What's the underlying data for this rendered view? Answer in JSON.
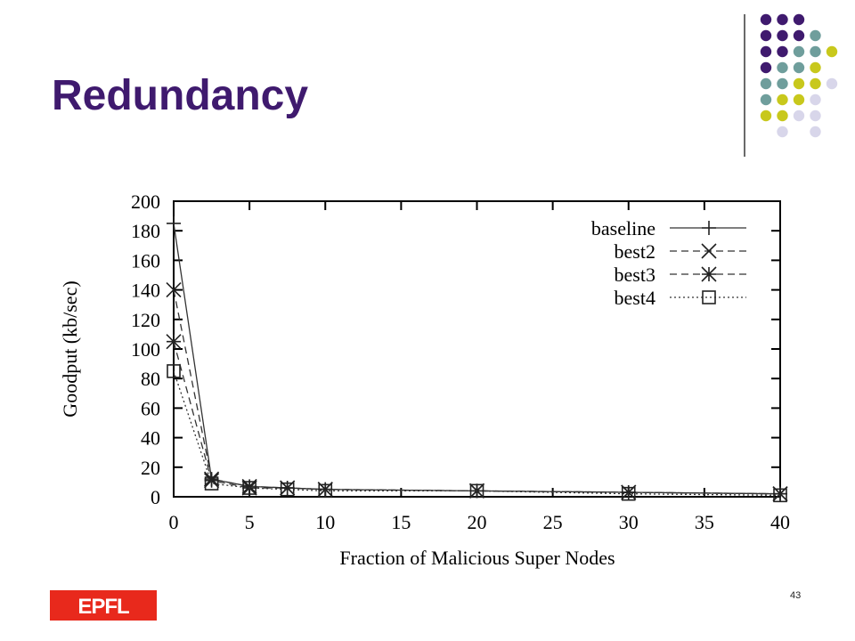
{
  "slide": {
    "title": "Redundancy",
    "page_number": "43",
    "logo_text": "EPFL"
  },
  "palette": {
    "title": "#3f1a6e",
    "dot_purple": "#3f1a6e",
    "dot_teal": "#6f9e9c",
    "dot_olive": "#c8c81c",
    "dot_lavender": "#d8d6ea",
    "logo_red": "#e8291c"
  },
  "dot_grid_colors": [
    [
      "purple",
      "purple",
      "purple",
      null,
      null
    ],
    [
      "purple",
      "purple",
      "purple",
      "teal",
      null
    ],
    [
      "purple",
      "purple",
      "teal",
      "teal",
      "olive"
    ],
    [
      "purple",
      "teal",
      "teal",
      "olive",
      null
    ],
    [
      "teal",
      "teal",
      "olive",
      "olive",
      "lavender"
    ],
    [
      "teal",
      "olive",
      "olive",
      "lavender",
      null
    ],
    [
      "olive",
      "olive",
      "lavender",
      "lavender",
      null
    ],
    [
      null,
      "lavender",
      null,
      "lavender",
      null
    ]
  ],
  "chart_data": {
    "type": "line",
    "xlabel": "Fraction of Malicious Super Nodes",
    "ylabel": "Goodput (kb/sec)",
    "xlim": [
      0,
      40
    ],
    "ylim": [
      0,
      200
    ],
    "xticks": [
      0,
      5,
      10,
      15,
      20,
      25,
      30,
      35,
      40
    ],
    "yticks": [
      0,
      20,
      40,
      60,
      80,
      100,
      120,
      140,
      160,
      180,
      200
    ],
    "grid": false,
    "legend_position": "top-right",
    "series": [
      {
        "name": "baseline",
        "marker": "plus",
        "dash": "solid",
        "x": [
          0,
          2.5,
          5,
          7.5,
          10,
          20,
          30,
          40
        ],
        "y": [
          185,
          12,
          7,
          6,
          5,
          4,
          3,
          2
        ]
      },
      {
        "name": "best2",
        "marker": "x",
        "dash": "dashed",
        "x": [
          0,
          2.5,
          5,
          7.5,
          10,
          20,
          30,
          40
        ],
        "y": [
          140,
          12,
          7,
          6,
          5,
          4,
          3,
          2
        ]
      },
      {
        "name": "best3",
        "marker": "star",
        "dash": "dashed",
        "x": [
          0,
          2.5,
          5,
          7.5,
          10,
          20,
          30,
          40
        ],
        "y": [
          105,
          11,
          6,
          6,
          5,
          4,
          3,
          2
        ]
      },
      {
        "name": "best4",
        "marker": "square",
        "dash": "dotted",
        "x": [
          0,
          2.5,
          5,
          7.5,
          10,
          20,
          30,
          40
        ],
        "y": [
          85,
          9,
          6,
          5,
          4,
          4,
          2,
          1
        ]
      }
    ]
  }
}
